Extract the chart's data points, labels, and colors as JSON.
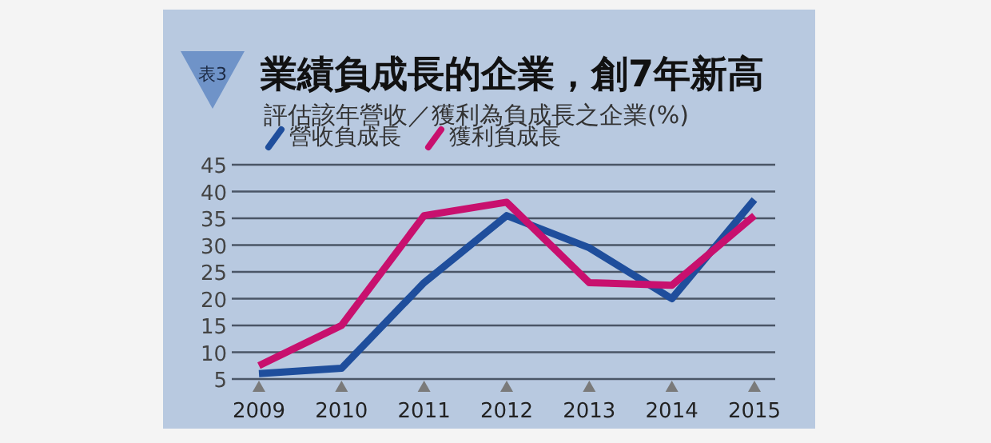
{
  "chart_data": {
    "type": "line",
    "title": "業績負成長的企業，創7年新高",
    "subtitle": "評估該年營收／獲利為負成長之企業(%)",
    "annotations": [
      "表3"
    ],
    "categories": [
      "2009",
      "2010",
      "2011",
      "2012",
      "2013",
      "2014",
      "2015"
    ],
    "series": [
      {
        "name": "營收負成長",
        "color": "#1f4e9c",
        "values": [
          6,
          7,
          23,
          35.5,
          29.5,
          20,
          38.5
        ]
      },
      {
        "name": "獲利負成長",
        "color": "#c8106e",
        "values": [
          7.5,
          15,
          35.5,
          38,
          23,
          22.5,
          35.5
        ]
      }
    ],
    "ylim": [
      5,
      45
    ],
    "yticks": [
      5,
      10,
      15,
      20,
      25,
      30,
      35,
      40,
      45
    ],
    "grid": "y",
    "legend": "top left",
    "marker": "none",
    "line_style": "solid"
  }
}
